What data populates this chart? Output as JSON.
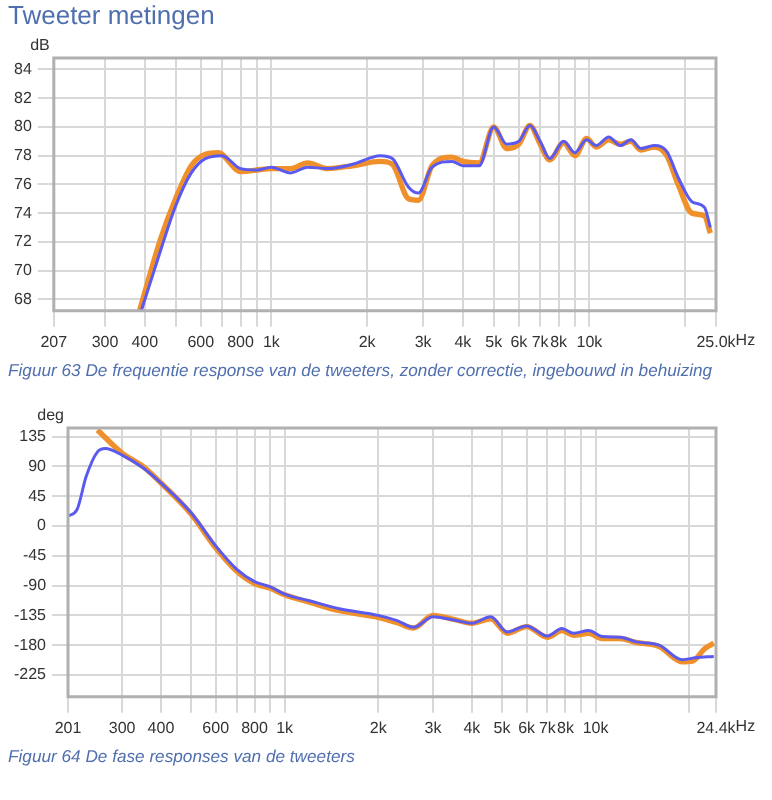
{
  "chart_data": [
    {
      "type": "line",
      "title": "Tweeter metingen",
      "ylabel": "dB",
      "annotations": [
        "Figuur 63 De frequentie response van de tweeters, zonder correctie, ingebouwd in behuizing"
      ],
      "log": "x",
      "grid": true,
      "legend": false,
      "xlim": [
        207,
        25000
      ],
      "ylim": [
        67.2,
        84.8
      ],
      "xticks": [
        207,
        300,
        400,
        {
          "value": 500,
          "label": null
        },
        600,
        {
          "value": 700,
          "label": null
        },
        800,
        {
          "value": 900,
          "label": null
        },
        {
          "value": 1000,
          "label": "1k"
        },
        {
          "value": 2000,
          "label": "2k"
        },
        {
          "value": 3000,
          "label": "3k"
        },
        {
          "value": 4000,
          "label": "4k"
        },
        {
          "value": 5000,
          "label": "5k"
        },
        {
          "value": 6000,
          "label": "6k"
        },
        {
          "value": 7000,
          "label": "7k"
        },
        {
          "value": 8000,
          "label": "8k"
        },
        {
          "value": 9000,
          "label": null
        },
        {
          "value": 10000,
          "label": "10k"
        },
        {
          "value": 20000,
          "label": null
        },
        {
          "value": 25000,
          "label": "25.0k"
        }
      ],
      "xlabel": "Hz",
      "yticks": [
        68,
        70,
        72,
        74,
        76,
        78,
        80,
        82,
        84
      ],
      "series": [
        {
          "color": "#5a5af0",
          "x": [
            390,
            450,
            500,
            560,
            620,
            700,
            800,
            900,
            1000,
            1150,
            1300,
            1500,
            1800,
            2200,
            2400,
            2700,
            2900,
            3200,
            3700,
            4000,
            4500,
            5000,
            5500,
            6000,
            6500,
            7000,
            7500,
            8300,
            9000,
            9800,
            10500,
            11500,
            12500,
            13500,
            14500,
            16000,
            17500,
            19000,
            21000,
            23000,
            24000
          ],
          "values": [
            67.2,
            71.5,
            74.5,
            76.8,
            77.8,
            78.0,
            77.1,
            77.0,
            77.2,
            76.8,
            77.2,
            77.1,
            77.4,
            78.0,
            77.8,
            75.8,
            75.4,
            77.2,
            77.6,
            77.3,
            77.3,
            80.0,
            78.8,
            79.0,
            80.1,
            79.0,
            77.8,
            79.0,
            78.2,
            79.1,
            78.7,
            79.3,
            78.7,
            79.1,
            78.5,
            78.7,
            78.3,
            76.5,
            74.8,
            74.4,
            73.0
          ]
        },
        {
          "color": "#f0902a",
          "x": [
            385,
            450,
            500,
            560,
            620,
            680,
            800,
            900,
            1000,
            1150,
            1300,
            1500,
            1800,
            2200,
            2400,
            2700,
            2900,
            3200,
            3700,
            4000,
            4500,
            5000,
            5500,
            6000,
            6500,
            7000,
            7500,
            8300,
            9000,
            9800,
            10500,
            11500,
            12500,
            13500,
            14500,
            16000,
            17500,
            19000,
            21000,
            23000,
            24000
          ],
          "values": [
            67.2,
            72.3,
            75.0,
            77.3,
            78.1,
            78.2,
            76.9,
            77.0,
            77.1,
            77.1,
            77.5,
            77.1,
            77.3,
            77.6,
            77.4,
            75.0,
            74.9,
            77.3,
            77.9,
            77.6,
            77.5,
            80.0,
            78.5,
            78.8,
            80.1,
            78.8,
            77.7,
            78.9,
            78.0,
            79.2,
            78.6,
            79.1,
            78.8,
            79.0,
            78.4,
            78.6,
            78.0,
            76.0,
            74.0,
            73.8,
            72.6
          ]
        }
      ]
    },
    {
      "type": "line",
      "ylabel": "deg",
      "annotations": [
        "Figuur 64 De fase responses van de tweeters"
      ],
      "log": "x",
      "grid": true,
      "legend": false,
      "xlim": [
        201,
        24400
      ],
      "ylim": [
        -258,
        148
      ],
      "xticks": [
        201,
        300,
        400,
        {
          "value": 500,
          "label": null
        },
        600,
        {
          "value": 700,
          "label": null
        },
        800,
        {
          "value": 900,
          "label": null
        },
        {
          "value": 1000,
          "label": "1k"
        },
        {
          "value": 2000,
          "label": "2k"
        },
        {
          "value": 3000,
          "label": "3k"
        },
        {
          "value": 4000,
          "label": "4k"
        },
        {
          "value": 5000,
          "label": "5k"
        },
        {
          "value": 6000,
          "label": "6k"
        },
        {
          "value": 7000,
          "label": "7k"
        },
        {
          "value": 8000,
          "label": "8k"
        },
        {
          "value": 9000,
          "label": null
        },
        {
          "value": 10000,
          "label": "10k"
        },
        {
          "value": 20000,
          "label": null
        },
        {
          "value": 24400,
          "label": "24.4k"
        }
      ],
      "xlabel": "Hz",
      "yticks": [
        -225,
        -180,
        -135,
        -90,
        -45,
        0,
        45,
        90,
        135
      ],
      "series": [
        {
          "color": "#5a5af0",
          "x": [
            201,
            215,
            230,
            250,
            265,
            300,
            350,
            400,
            500,
            600,
            700,
            800,
            900,
            1000,
            1200,
            1500,
            2000,
            2300,
            2600,
            3000,
            3500,
            4000,
            4600,
            5200,
            6000,
            7000,
            7800,
            8500,
            9500,
            10500,
            12000,
            13500,
            16000,
            19000,
            21000,
            24000
          ],
          "values": [
            15,
            25,
            75,
            112,
            117,
            107,
            88,
            65,
            20,
            -30,
            -65,
            -84,
            -92,
            -103,
            -113,
            -125,
            -135,
            -143,
            -153,
            -137,
            -142,
            -147,
            -137,
            -160,
            -151,
            -166,
            -155,
            -162,
            -158,
            -167,
            -168,
            -175,
            -180,
            -202,
            -199,
            -197
          ]
        },
        {
          "color": "#f0902a",
          "x": [
            250,
            300,
            350,
            400,
            500,
            600,
            700,
            800,
            900,
            1000,
            1200,
            1500,
            2000,
            2300,
            2600,
            3000,
            3500,
            4000,
            4600,
            5200,
            6000,
            7000,
            7800,
            8500,
            9500,
            10500,
            12000,
            13500,
            16000,
            19000,
            20500,
            22500,
            24000
          ],
          "values": [
            145,
            110,
            90,
            65,
            18,
            -33,
            -68,
            -87,
            -94,
            -104,
            -115,
            -128,
            -138,
            -146,
            -154,
            -135,
            -141,
            -147,
            -140,
            -162,
            -152,
            -168,
            -158,
            -165,
            -162,
            -170,
            -170,
            -176,
            -182,
            -205,
            -204,
            -185,
            -177
          ]
        }
      ]
    }
  ]
}
